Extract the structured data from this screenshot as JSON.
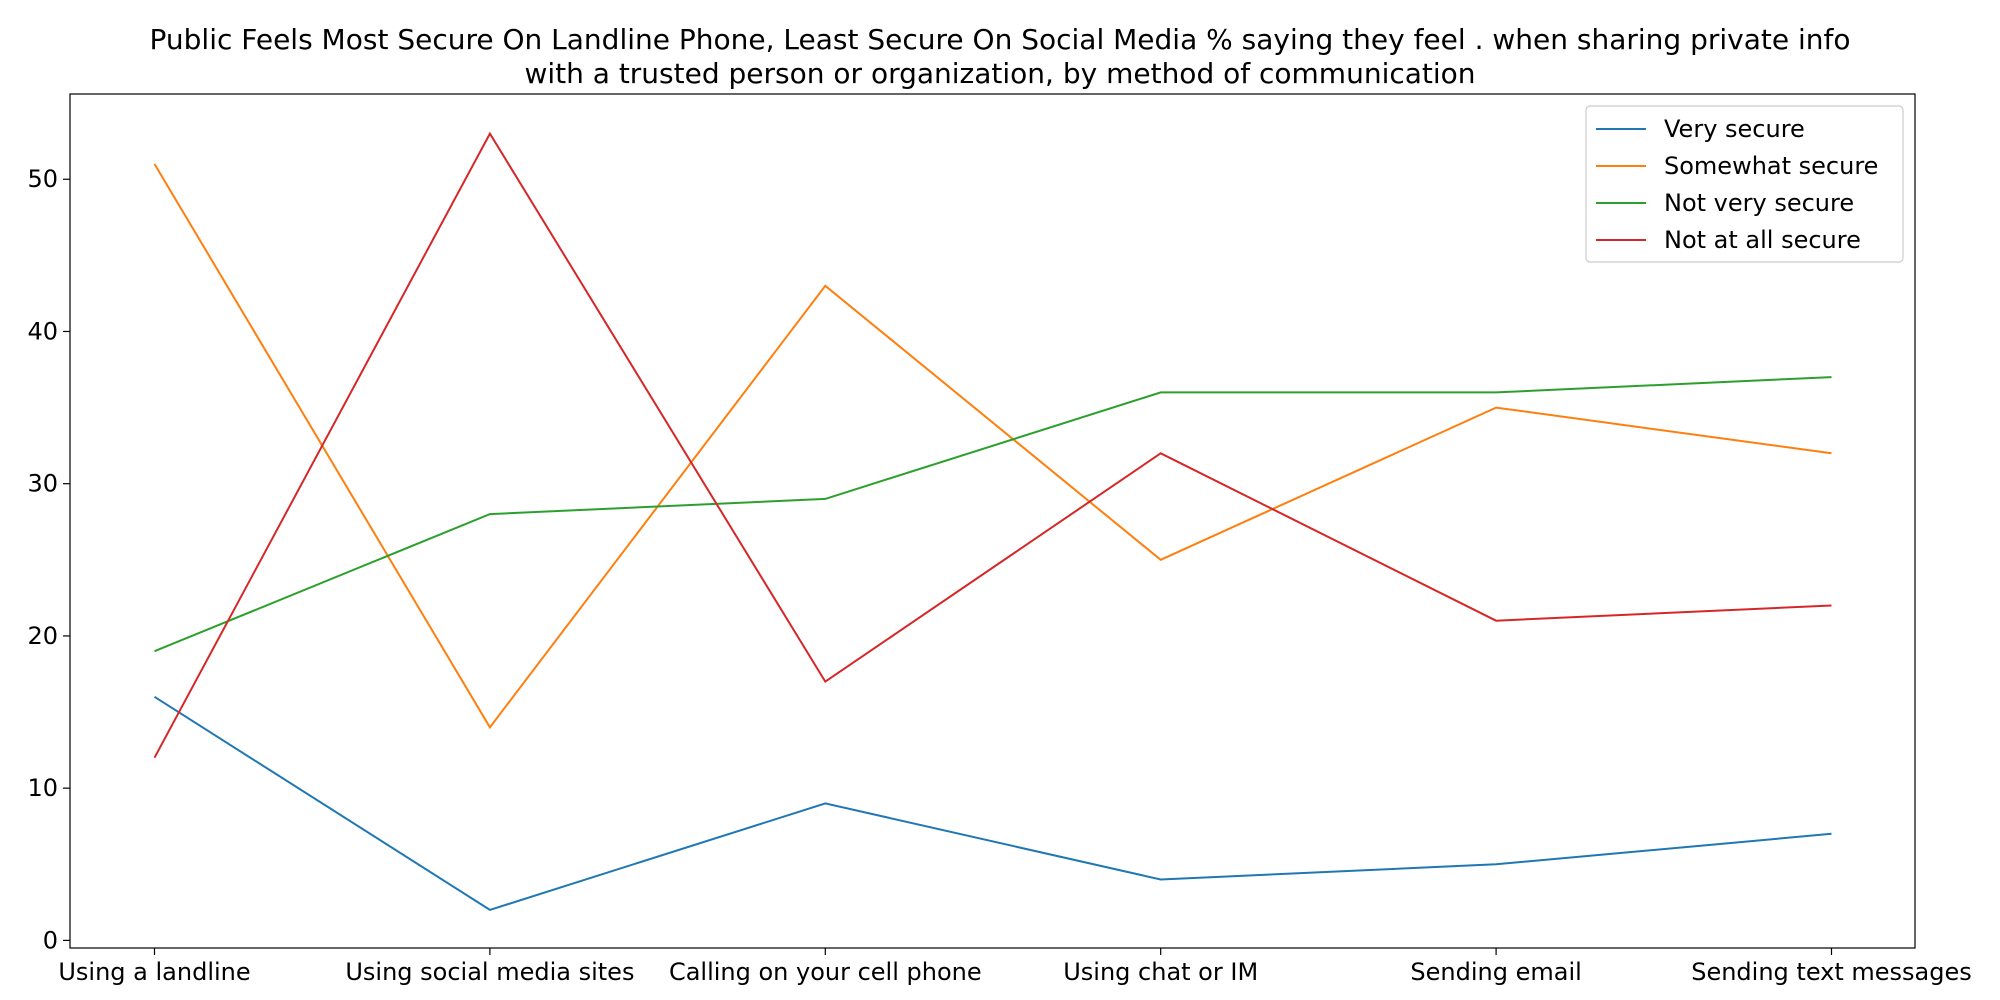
{
  "chart_data": {
    "type": "line",
    "title": "Public Feels Most Secure On Landline Phone, Least Secure On Social Media % saying they feel . when sharing private info with a trusted person or organization, by method of communication",
    "title_lines": [
      "Public Feels Most Secure On Landline Phone, Least Secure On Social Media % saying they feel . when sharing private info",
      "with a trusted person or organization, by method of communication"
    ],
    "xlabel": "",
    "ylabel": "",
    "categories": [
      "Using a landline",
      "Using social media sites",
      "Calling on your cell phone",
      "Using chat or IM",
      "Sending email",
      "Sending text messages"
    ],
    "ylim": [
      -0.5,
      55.6
    ],
    "yticks": [
      0,
      10,
      20,
      30,
      40,
      50
    ],
    "grid": false,
    "legend_position": "top-right",
    "series": [
      {
        "name": "Very secure",
        "color": "#1f77b4",
        "values": [
          16,
          2,
          9,
          4,
          5,
          7
        ]
      },
      {
        "name": "Somewhat secure",
        "color": "#ff7f0e",
        "values": [
          51,
          14,
          43,
          25,
          35,
          32
        ]
      },
      {
        "name": "Not very secure",
        "color": "#2ca02c",
        "values": [
          19,
          28,
          29,
          36,
          36,
          37
        ]
      },
      {
        "name": "Not at all secure",
        "color": "#d62728",
        "values": [
          12,
          53,
          17,
          32,
          21,
          22
        ]
      }
    ]
  }
}
